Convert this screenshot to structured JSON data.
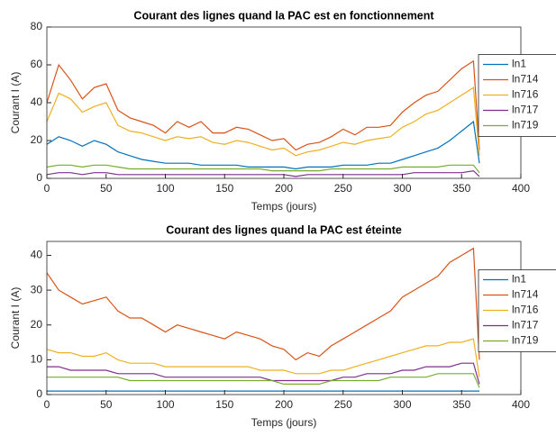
{
  "chart_data": [
    {
      "type": "line",
      "title": "Courant des lignes quand la PAC est en fonctionnement",
      "x_label": "Temps (jours)",
      "y_label": "Courant I (A)",
      "x": [
        0,
        10,
        20,
        30,
        40,
        50,
        60,
        70,
        80,
        90,
        100,
        110,
        120,
        130,
        140,
        150,
        160,
        170,
        180,
        190,
        200,
        210,
        220,
        230,
        240,
        250,
        260,
        270,
        280,
        290,
        300,
        310,
        320,
        330,
        340,
        350,
        360,
        365
      ],
      "series": [
        {
          "name": "ln1",
          "color": "#0072BD",
          "values": [
            18,
            22,
            20,
            17,
            20,
            18,
            14,
            12,
            10,
            9,
            8,
            8,
            8,
            7,
            7,
            7,
            7,
            6,
            6,
            6,
            6,
            5,
            6,
            6,
            6,
            7,
            7,
            7,
            8,
            8,
            10,
            12,
            14,
            16,
            20,
            25,
            30,
            8
          ]
        },
        {
          "name": "ln714",
          "color": "#D95319",
          "values": [
            40,
            60,
            52,
            42,
            48,
            50,
            36,
            32,
            30,
            28,
            24,
            30,
            27,
            30,
            24,
            24,
            27,
            26,
            23,
            20,
            21,
            15,
            18,
            19,
            22,
            26,
            23,
            27,
            27,
            28,
            35,
            40,
            44,
            46,
            52,
            58,
            62,
            15
          ]
        },
        {
          "name": "ln716",
          "color": "#EDB120",
          "values": [
            30,
            45,
            42,
            35,
            38,
            40,
            28,
            25,
            24,
            22,
            20,
            22,
            21,
            22,
            19,
            18,
            20,
            19,
            17,
            15,
            16,
            12,
            14,
            15,
            17,
            19,
            18,
            20,
            21,
            22,
            27,
            30,
            34,
            36,
            40,
            44,
            48,
            12
          ]
        },
        {
          "name": "ln717",
          "color": "#7E2F8E",
          "values": [
            2,
            3,
            3,
            2,
            3,
            3,
            2,
            2,
            2,
            2,
            2,
            2,
            2,
            2,
            2,
            2,
            2,
            2,
            2,
            2,
            2,
            1,
            2,
            2,
            2,
            2,
            2,
            2,
            2,
            2,
            2,
            3,
            3,
            3,
            3,
            3,
            4,
            1
          ]
        },
        {
          "name": "ln719",
          "color": "#77AC30",
          "values": [
            6,
            7,
            7,
            6,
            7,
            7,
            6,
            5,
            5,
            5,
            5,
            5,
            5,
            5,
            5,
            5,
            5,
            5,
            5,
            4,
            4,
            4,
            4,
            4,
            5,
            5,
            5,
            5,
            5,
            5,
            6,
            6,
            6,
            6,
            7,
            7,
            7,
            3
          ]
        }
      ],
      "xlim": [
        0,
        400
      ],
      "ylim": [
        0,
        80
      ],
      "xticks": [
        0,
        50,
        100,
        150,
        200,
        250,
        300,
        350,
        400
      ],
      "yticks": [
        0,
        20,
        40,
        60,
        80
      ],
      "legend": "right"
    },
    {
      "type": "line",
      "title": "Courant des lignes quand la PAC est éteinte",
      "x_label": "Temps (jours)",
      "y_label": "Courant I (A)",
      "x": [
        0,
        10,
        20,
        30,
        40,
        50,
        60,
        70,
        80,
        90,
        100,
        110,
        120,
        130,
        140,
        150,
        160,
        170,
        180,
        190,
        200,
        210,
        220,
        230,
        240,
        250,
        260,
        270,
        280,
        290,
        300,
        310,
        320,
        330,
        340,
        350,
        360,
        365
      ],
      "series": [
        {
          "name": "ln1",
          "color": "#0072BD",
          "values": [
            1,
            1,
            1,
            1,
            1,
            1,
            1,
            1,
            1,
            1,
            1,
            1,
            1,
            1,
            1,
            1,
            1,
            1,
            1,
            1,
            1,
            1,
            1,
            1,
            1,
            1,
            1,
            1,
            1,
            1,
            1,
            1,
            1,
            1,
            1,
            1,
            1,
            1
          ]
        },
        {
          "name": "ln714",
          "color": "#D95319",
          "values": [
            35,
            30,
            28,
            26,
            27,
            28,
            24,
            22,
            22,
            20,
            18,
            20,
            19,
            18,
            17,
            16,
            18,
            17,
            16,
            14,
            13,
            10,
            12,
            11,
            14,
            16,
            18,
            20,
            22,
            24,
            28,
            30,
            32,
            34,
            38,
            40,
            42,
            10
          ]
        },
        {
          "name": "ln716",
          "color": "#EDB120",
          "values": [
            13,
            12,
            12,
            11,
            11,
            12,
            10,
            9,
            9,
            9,
            8,
            8,
            8,
            8,
            8,
            8,
            8,
            8,
            7,
            7,
            7,
            6,
            6,
            6,
            7,
            7,
            8,
            9,
            10,
            11,
            12,
            13,
            14,
            14,
            15,
            15,
            16,
            5
          ]
        },
        {
          "name": "ln717",
          "color": "#7E2F8E",
          "values": [
            8,
            8,
            7,
            7,
            7,
            7,
            6,
            6,
            6,
            6,
            5,
            5,
            5,
            5,
            5,
            5,
            5,
            5,
            5,
            4,
            4,
            4,
            4,
            4,
            4,
            5,
            5,
            6,
            6,
            6,
            7,
            7,
            8,
            8,
            8,
            9,
            9,
            3
          ]
        },
        {
          "name": "ln719",
          "color": "#77AC30",
          "values": [
            5,
            5,
            5,
            5,
            5,
            5,
            5,
            4,
            4,
            4,
            4,
            4,
            4,
            4,
            4,
            4,
            4,
            4,
            4,
            4,
            3,
            3,
            3,
            3,
            4,
            4,
            4,
            4,
            4,
            5,
            5,
            5,
            5,
            6,
            6,
            6,
            6,
            2
          ]
        }
      ],
      "xlim": [
        0,
        400
      ],
      "ylim": [
        0,
        44
      ],
      "xticks": [
        0,
        50,
        100,
        150,
        200,
        250,
        300,
        350,
        400
      ],
      "yticks": [
        0,
        10,
        20,
        30,
        40
      ],
      "legend": "right"
    }
  ]
}
